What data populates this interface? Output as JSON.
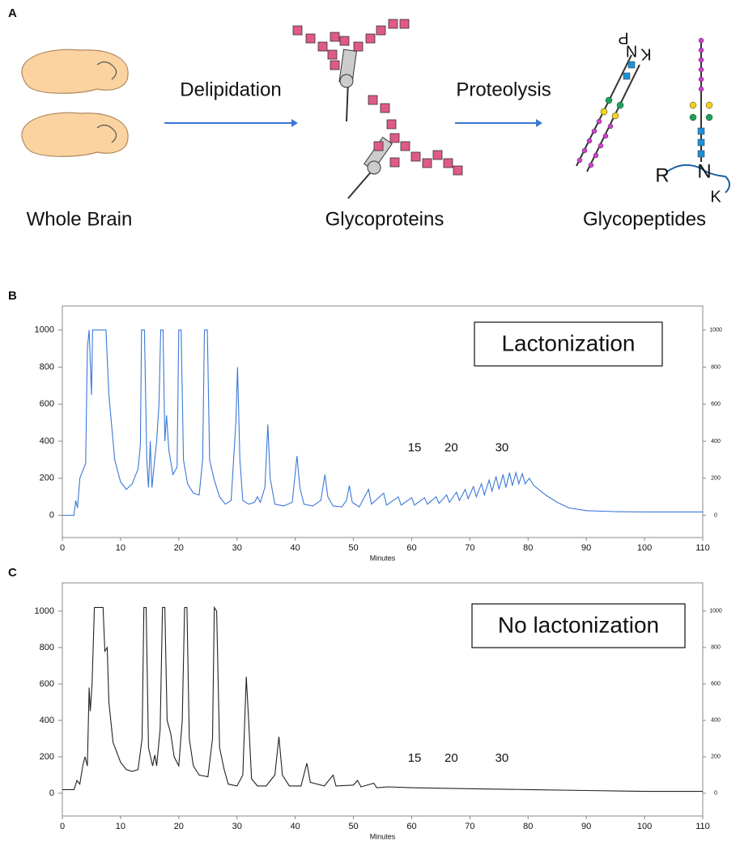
{
  "diagram": {
    "panel": "A",
    "source": "Whole Brain",
    "step1": "Delipidation",
    "middle": "Glycoproteins",
    "step2": "Proteolysis",
    "product": "Glycopeptides",
    "residues": [
      "R",
      "N",
      "K"
    ],
    "residues_flipped": [
      "K",
      "N",
      "P"
    ]
  },
  "chart_data": [
    {
      "type": "line",
      "panel": "B",
      "box_label": "Lactonization",
      "x_label": "Minutes",
      "color": "#3b78d8",
      "xlim": [
        0,
        110
      ],
      "xticks": [
        0,
        10,
        20,
        30,
        40,
        50,
        60,
        70,
        80,
        90,
        100,
        110
      ],
      "ylim": [
        -120,
        1130
      ],
      "yticks": [
        0,
        200,
        400,
        600,
        800,
        1000
      ],
      "y2lim": [
        -120,
        1130
      ],
      "y2ticks": [
        0,
        200,
        400,
        600,
        800,
        1000
      ],
      "annotations": [
        {
          "text": "15",
          "x": 60.5,
          "y": 362
        },
        {
          "text": "20",
          "x": 66.8,
          "y": 362
        },
        {
          "text": "30",
          "x": 75.5,
          "y": 362
        }
      ],
      "x": [
        0,
        2,
        2.3,
        2.6,
        3,
        3.5,
        4,
        4.3,
        4.6,
        5.0,
        5.2,
        7.5,
        8,
        9,
        10,
        11,
        12,
        13,
        13.4,
        13.6,
        14.1,
        14.5,
        14.8,
        15.1,
        15.4,
        15.8,
        16.2,
        16.6,
        16.9,
        17.3,
        17.6,
        17.9,
        18.3,
        19,
        19.7,
        20,
        20.4,
        20.8,
        21.5,
        22.5,
        23.5,
        24.1,
        24.4,
        24.9,
        25.3,
        26,
        27,
        28,
        29,
        29.8,
        30.1,
        30.5,
        31,
        32,
        33,
        33.5,
        34,
        34.8,
        35.3,
        35.7,
        36.5,
        38,
        39.5,
        40.3,
        40.8,
        41.5,
        43,
        44.4,
        45.1,
        45.6,
        46.5,
        48,
        48.8,
        49.3,
        49.8,
        51,
        52.6,
        53.1,
        55.2,
        55.7,
        57.7,
        58.2,
        60,
        60.5,
        62.2,
        62.7,
        64.2,
        64.7,
        66,
        66.5,
        67.7,
        68.2,
        69.2,
        69.7,
        70.6,
        71.1,
        72,
        72.5,
        73.3,
        73.8,
        74.5,
        75,
        75.7,
        76.2,
        76.8,
        77.3,
        77.9,
        78.4,
        79,
        79.5,
        80.2,
        81,
        83,
        85,
        87,
        90,
        95,
        100,
        110
      ],
      "values": [
        0,
        0,
        80,
        40,
        200,
        240,
        280,
        900,
        1000,
        650,
        1000,
        1000,
        650,
        300,
        180,
        140,
        170,
        250,
        380,
        1000,
        1000,
        300,
        150,
        400,
        150,
        280,
        400,
        600,
        1000,
        1000,
        400,
        540,
        350,
        220,
        260,
        1000,
        1000,
        300,
        170,
        120,
        110,
        300,
        1000,
        1000,
        300,
        200,
        100,
        60,
        80,
        500,
        800,
        300,
        80,
        60,
        70,
        100,
        70,
        150,
        490,
        200,
        60,
        50,
        70,
        320,
        150,
        60,
        50,
        80,
        220,
        100,
        50,
        45,
        80,
        160,
        70,
        45,
        140,
        60,
        120,
        55,
        100,
        55,
        95,
        55,
        95,
        60,
        100,
        65,
        110,
        70,
        125,
        80,
        140,
        90,
        155,
        100,
        170,
        110,
        190,
        130,
        210,
        140,
        220,
        150,
        230,
        160,
        230,
        170,
        225,
        170,
        200,
        160,
        110,
        70,
        40,
        25,
        20,
        18,
        18
      ]
    },
    {
      "type": "line",
      "panel": "C",
      "box_label": "No lactonization",
      "x_label": "Minutes",
      "color": "#222222",
      "xlim": [
        0,
        110
      ],
      "xticks": [
        0,
        10,
        20,
        30,
        40,
        50,
        60,
        70,
        80,
        90,
        100,
        110
      ],
      "ylim": [
        -125,
        1155
      ],
      "yticks": [
        0,
        200,
        400,
        600,
        800,
        1000
      ],
      "y2lim": [
        -125,
        1155
      ],
      "y2ticks": [
        0,
        200,
        400,
        600,
        800,
        1000
      ],
      "annotations": [
        {
          "text": "15",
          "x": 60.5,
          "y": 191
        },
        {
          "text": "20",
          "x": 66.8,
          "y": 191
        },
        {
          "text": "30",
          "x": 75.5,
          "y": 191
        }
      ],
      "x": [
        0,
        2,
        2.5,
        3,
        3.5,
        3.9,
        4.3,
        4.6,
        4.8,
        5.1,
        5.5,
        7,
        7.3,
        7.7,
        8,
        8.7,
        10,
        11,
        12,
        13,
        13.7,
        14,
        14.4,
        14.8,
        15.5,
        15.9,
        16.2,
        16.8,
        17.2,
        17.6,
        18,
        18.6,
        19.2,
        20,
        20.6,
        21,
        21.4,
        21.8,
        22.5,
        23.5,
        25,
        25.8,
        26.1,
        26.5,
        27,
        27.8,
        28.5,
        30,
        31,
        31.6,
        32,
        32.5,
        33.5,
        35,
        36.5,
        37.2,
        37.8,
        39,
        41,
        42,
        42.6,
        45,
        46.5,
        47,
        50,
        50.7,
        51.3,
        53.5,
        54,
        56,
        60,
        70,
        80,
        90,
        100,
        110
      ],
      "values": [
        20,
        20,
        70,
        50,
        150,
        200,
        150,
        580,
        450,
        600,
        1020,
        1020,
        780,
        800,
        500,
        280,
        170,
        130,
        120,
        130,
        300,
        1020,
        1020,
        250,
        150,
        210,
        150,
        350,
        1020,
        1020,
        400,
        330,
        200,
        150,
        400,
        1020,
        1020,
        300,
        150,
        100,
        90,
        300,
        1020,
        1000,
        250,
        130,
        50,
        40,
        100,
        640,
        400,
        80,
        40,
        40,
        100,
        310,
        100,
        40,
        40,
        165,
        60,
        40,
        100,
        40,
        45,
        70,
        35,
        55,
        30,
        35,
        30,
        25,
        20,
        15,
        10,
        10
      ]
    }
  ]
}
